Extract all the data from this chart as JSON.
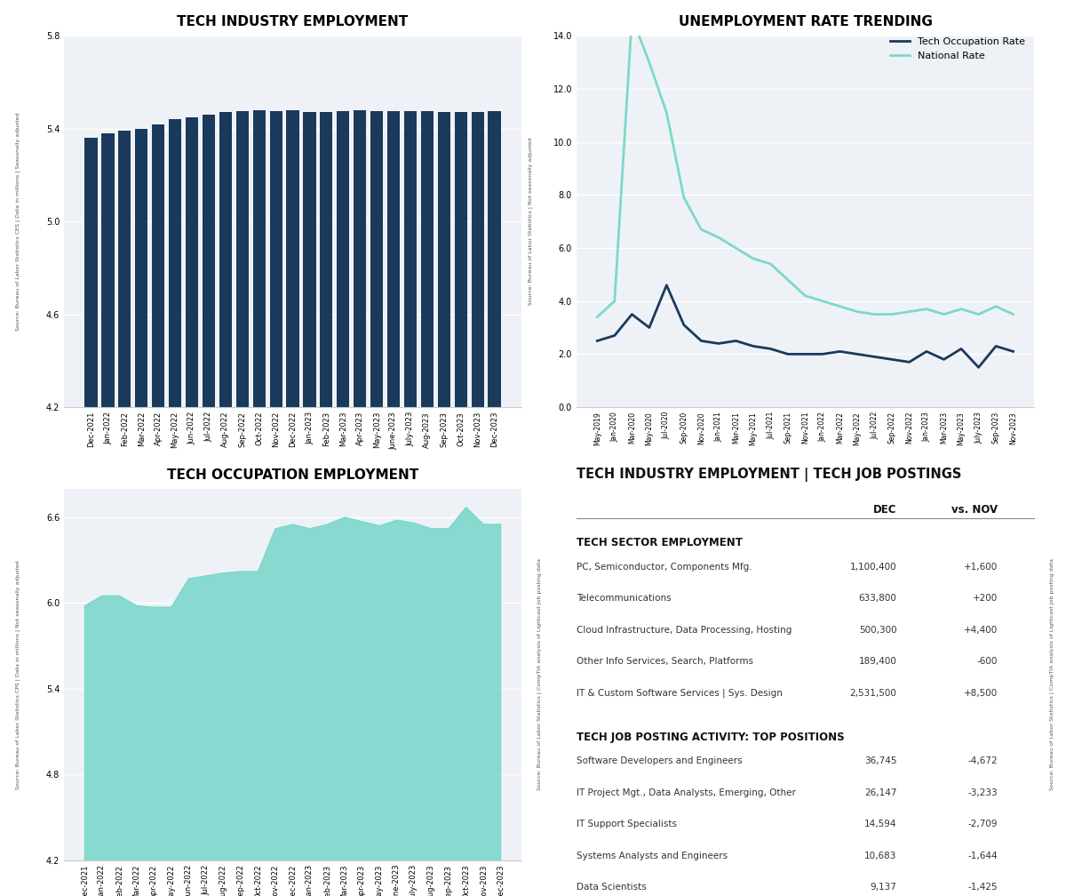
{
  "bar_months": [
    "Dec-2021",
    "Jan-2022",
    "Feb-2022",
    "Mar-2022",
    "Apr-2022",
    "May-2022",
    "Jun-2022",
    "Jul-2022",
    "Aug-2022",
    "Sep-2022",
    "Oct-2022",
    "Nov-2022",
    "Dec-2022",
    "Jan-2023",
    "Feb-2023",
    "Mar-2023",
    "Apr-2023",
    "May-2023",
    "June-2023",
    "July-2023",
    "Aug-2023",
    "Sep-2023",
    "Oct-2023",
    "Nov-2023",
    "Dec-2023"
  ],
  "bar_values": [
    5.36,
    5.38,
    5.39,
    5.4,
    5.42,
    5.44,
    5.45,
    5.46,
    5.47,
    5.475,
    5.48,
    5.475,
    5.48,
    5.47,
    5.47,
    5.475,
    5.48,
    5.475,
    5.475,
    5.475,
    5.475,
    5.47,
    5.47,
    5.47,
    5.475
  ],
  "bar_color": "#1a3a5c",
  "bar_ylim": [
    4.2,
    5.8
  ],
  "bar_yticks": [
    4.2,
    4.6,
    5.0,
    5.4,
    5.8
  ],
  "bar_title": "TECH INDUSTRY EMPLOYMENT",
  "bar_ylabel_left": "Source: Bureau of Labor Statistics CES | Data in millions | Seasonally adjusted",
  "unemp_x_labels": [
    "May-2019",
    "Jan-2020",
    "Mar-2020",
    "May-2020",
    "Jul-2020",
    "Sep-2020",
    "Nov-2020",
    "Jan-2021",
    "Mar-2021",
    "May-2021",
    "Jul-2021",
    "Sep-2021",
    "Nov-2021",
    "Jan-2022",
    "Mar-2022",
    "May-2022",
    "Jul-2022",
    "Sep-2022",
    "Nov-2022",
    "Jan-2023",
    "Mar-2023",
    "May-2023",
    "July-2023",
    "Sep-2023",
    "Nov-2023"
  ],
  "tech_rate": [
    2.5,
    2.7,
    3.5,
    3.0,
    4.6,
    3.1,
    2.5,
    2.4,
    2.5,
    2.3,
    2.2,
    2.0,
    2.0,
    2.0,
    2.1,
    2.0,
    1.9,
    1.8,
    1.7,
    2.1,
    1.8,
    2.2,
    1.5,
    2.3,
    2.1
  ],
  "national_rate": [
    3.4,
    4.0,
    14.7,
    13.0,
    11.1,
    7.9,
    6.7,
    6.4,
    6.0,
    5.6,
    5.4,
    4.8,
    4.2,
    4.0,
    3.8,
    3.6,
    3.5,
    3.5,
    3.6,
    3.7,
    3.5,
    3.7,
    3.5,
    3.8,
    3.5
  ],
  "unemp_title": "UNEMPLOYMENT RATE TRENDING",
  "unemp_ylim": [
    0.0,
    14.0
  ],
  "unemp_yticks": [
    0.0,
    2.0,
    4.0,
    6.0,
    8.0,
    10.0,
    12.0,
    14.0
  ],
  "unemp_ylabel": "Source: Bureau of Labor Statistics | Not seasonally adjusted",
  "tech_line_color": "#1a3a5c",
  "national_line_color": "#7dd8cc",
  "occ_months": [
    "Dec-2021",
    "Jan-2022",
    "Feb-2022",
    "Mar-2022",
    "Apr-2022",
    "May-2022",
    "Jun-2022",
    "Jul-2022",
    "Aug-2022",
    "Sep-2022",
    "Oct-2022",
    "Nov-2022",
    "Dec-2022",
    "Jan-2023",
    "Feb-2023",
    "Mar-2023",
    "Apr-2023",
    "May-2023",
    "June-2023",
    "July-2023",
    "Aug-2023",
    "Sep-2023",
    "Oct-2023",
    "Nov-2023",
    "Dec-2023"
  ],
  "occ_values": [
    5.98,
    6.05,
    6.05,
    5.98,
    5.97,
    5.97,
    6.17,
    6.19,
    6.21,
    6.22,
    6.22,
    6.52,
    6.55,
    6.52,
    6.55,
    6.6,
    6.57,
    6.54,
    6.58,
    6.56,
    6.52,
    6.52,
    6.67,
    6.55,
    6.55
  ],
  "occ_color": "#7dd8cc",
  "occ_ylim": [
    4.2,
    6.8
  ],
  "occ_yticks": [
    4.2,
    4.8,
    5.4,
    6.0,
    6.6
  ],
  "occ_title": "TECH OCCUPATION EMPLOYMENT",
  "occ_ylabel_left": "Source: Bureau of Labor Statistics CPS | Data in millions | Not seasonally adjusted",
  "occ_ylabel_right": "Source: Bureau of Labor Statistics | CompTIA analysis of Lightcast job posting data",
  "table_title": "TECH INDUSTRY EMPLOYMENT | TECH JOB POSTINGS",
  "table_col_headers": [
    "DEC",
    "vs. NOV"
  ],
  "table_section1_title": "TECH SECTOR EMPLOYMENT",
  "table_rows": [
    [
      "PC, Semiconductor, Components Mfg.",
      "1,100,400",
      "+1,600"
    ],
    [
      "Telecommunications",
      "633,800",
      "+200"
    ],
    [
      "Cloud Infrastructure, Data Processing, Hosting",
      "500,300",
      "+4,400"
    ],
    [
      "Other Info Services, Search, Platforms",
      "189,400",
      "-600"
    ],
    [
      "IT & Custom Software Services | Sys. Design",
      "2,531,500",
      "+8,500"
    ]
  ],
  "table_section2_title": "TECH JOB POSTING ACTIVITY: TOP POSITIONS",
  "table_rows2": [
    [
      "Software Developers and Engineers",
      "36,745",
      "-4,672"
    ],
    [
      "IT Project Mgt., Data Analysts, Emerging, Other",
      "26,147",
      "-3,233"
    ],
    [
      "IT Support Specialists",
      "14,594",
      "-2,709"
    ],
    [
      "Systems Analysts and Engineers",
      "10,683",
      "-1,644"
    ],
    [
      "Data Scientists",
      "9,137",
      "-1,425"
    ]
  ]
}
